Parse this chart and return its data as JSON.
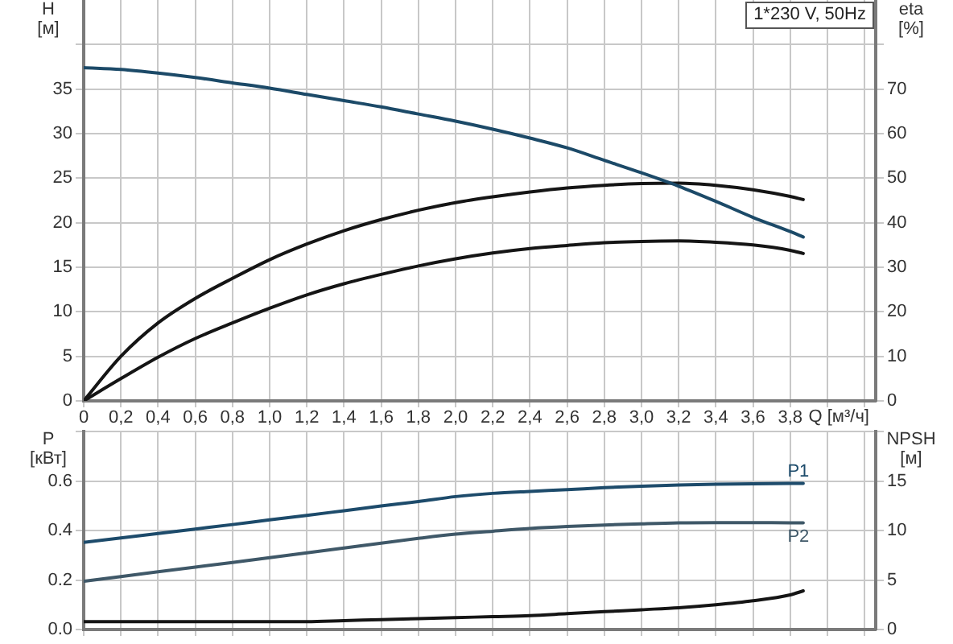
{
  "chart_data": [
    {
      "type": "line",
      "title": "1*230 V, 50Hz",
      "xlabel": "Q [м³/ч]",
      "ylabel": "H [м]",
      "y2label": "eta [%]",
      "x": [
        0,
        0.2,
        0.4,
        0.6,
        0.8,
        1.0,
        1.2,
        1.4,
        1.6,
        1.8,
        2.0,
        2.2,
        2.4,
        2.6,
        2.8,
        3.0,
        3.2,
        3.4,
        3.6,
        3.8,
        3.87
      ],
      "xlim": [
        0,
        4.26
      ],
      "xticks": [
        0,
        {
          "value": 0.2,
          "label": "0,2"
        },
        {
          "value": 0.4,
          "label": "0,4"
        },
        {
          "value": 0.6,
          "label": "0,6"
        },
        {
          "value": 0.8,
          "label": "0,8"
        },
        {
          "value": 1.0,
          "label": "1,0"
        },
        {
          "value": 1.2,
          "label": "1,2"
        },
        {
          "value": 1.4,
          "label": "1,4"
        },
        {
          "value": 1.6,
          "label": "1,6"
        },
        {
          "value": 1.8,
          "label": "1,8"
        },
        {
          "value": 2.0,
          "label": "2,0"
        },
        {
          "value": 2.2,
          "label": "2,2"
        },
        {
          "value": 2.4,
          "label": "2,4"
        },
        {
          "value": 2.6,
          "label": "2,6"
        },
        {
          "value": 2.8,
          "label": "2,8"
        },
        {
          "value": 3.0,
          "label": "3,0"
        },
        {
          "value": 3.2,
          "label": "3,2"
        },
        {
          "value": 3.4,
          "label": "3,4"
        },
        {
          "value": 3.6,
          "label": "3,6"
        },
        {
          "value": 3.8,
          "label": "3,8"
        },
        {
          "value": 4.0,
          "label": null
        },
        {
          "value": 4.2,
          "label": null
        }
      ],
      "ylim": [
        0,
        45
      ],
      "yticks": [
        0,
        5,
        10,
        15,
        20,
        25,
        30,
        35,
        {
          "value": 40,
          "label": null
        }
      ],
      "y2lim": [
        0,
        90
      ],
      "y2ticks": [
        0,
        10,
        20,
        30,
        40,
        50,
        60,
        70,
        {
          "value": 80,
          "label": null
        }
      ],
      "grid": true,
      "legend": false,
      "marker": "none",
      "line_style": "solid",
      "series": [
        {
          "color": "#1c4a68",
          "values": [
            37.4,
            37.2,
            36.8,
            36.3,
            35.7,
            35.1,
            34.4,
            33.7,
            33.0,
            32.2,
            31.4,
            30.5,
            29.5,
            28.4,
            27.0,
            25.6,
            24.1,
            22.4,
            20.6,
            19.0,
            18.4
          ]
        },
        {
          "color": "#151515",
          "axis": "y2",
          "values": [
            0,
            10,
            17.5,
            23,
            27.5,
            31.7,
            35.2,
            38.2,
            40.7,
            42.8,
            44.5,
            45.8,
            46.9,
            47.8,
            48.4,
            48.8,
            48.9,
            48.4,
            47.4,
            45.9,
            45.2
          ]
        },
        {
          "color": "#151515",
          "axis": "y2",
          "values": [
            0,
            5,
            9.8,
            14,
            17.5,
            20.8,
            23.8,
            26.3,
            28.4,
            30.3,
            31.9,
            33.2,
            34.2,
            34.9,
            35.5,
            35.8,
            35.9,
            35.6,
            35.0,
            33.8,
            33.1
          ]
        }
      ]
    },
    {
      "type": "line",
      "ylabel": "P [кВт]",
      "y2label": "NPSH [м]",
      "x": [
        0,
        0.2,
        0.4,
        0.6,
        0.8,
        1.0,
        1.2,
        1.4,
        1.6,
        1.8,
        2.0,
        2.2,
        2.4,
        2.6,
        2.8,
        3.0,
        3.2,
        3.4,
        3.6,
        3.8,
        3.87
      ],
      "xlim": [
        0,
        4.26
      ],
      "xticks": [
        0,
        0.2,
        0.4,
        0.6,
        0.8,
        1.0,
        1.2,
        1.4,
        1.6,
        1.8,
        2.0,
        2.2,
        2.4,
        2.6,
        2.8,
        3.0,
        3.2,
        3.4,
        3.6,
        3.8,
        4.0,
        4.2
      ],
      "ylim": [
        0,
        0.8
      ],
      "yticks": [
        {
          "value": 0,
          "label": "0.0"
        },
        0.2,
        0.4,
        0.6,
        {
          "value": 0.8,
          "label": null
        }
      ],
      "y2lim": [
        0,
        20
      ],
      "y2ticks": [
        0,
        5,
        10,
        15,
        {
          "value": 20,
          "label": null
        }
      ],
      "tick_labels": "y",
      "grid": true,
      "legend": false,
      "marker": "none",
      "line_style": "solid",
      "series": [
        {
          "name": "P1",
          "color": "#1d4b6b",
          "values": [
            0.352,
            0.37,
            0.388,
            0.406,
            0.424,
            0.443,
            0.461,
            0.48,
            0.499,
            0.517,
            0.537,
            0.55,
            0.558,
            0.565,
            0.573,
            0.579,
            0.584,
            0.587,
            0.589,
            0.59,
            0.59
          ]
        },
        {
          "name": "P2",
          "color": "#3f5868",
          "values": [
            0.195,
            0.214,
            0.233,
            0.252,
            0.271,
            0.29,
            0.31,
            0.329,
            0.349,
            0.368,
            0.385,
            0.397,
            0.408,
            0.416,
            0.422,
            0.427,
            0.431,
            0.432,
            0.432,
            0.431,
            0.431
          ]
        },
        {
          "color": "#151515",
          "axis": "y2",
          "values": [
            0.8,
            0.8,
            0.8,
            0.8,
            0.8,
            0.8,
            0.8,
            0.9,
            1.0,
            1.1,
            1.2,
            1.3,
            1.4,
            1.6,
            1.8,
            2.0,
            2.2,
            2.5,
            2.9,
            3.5,
            3.9
          ]
        }
      ]
    }
  ]
}
